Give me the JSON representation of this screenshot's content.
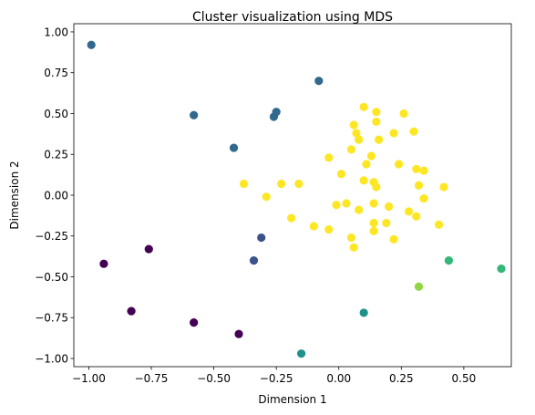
{
  "chart_data": {
    "type": "scatter",
    "title": "Cluster visualization using MDS",
    "xlabel": "Dimension 1",
    "ylabel": "Dimension 2",
    "xlim": [
      -1.06,
      0.69
    ],
    "ylim": [
      -1.05,
      1.05
    ],
    "xticks": [
      -1.0,
      -0.75,
      -0.5,
      -0.25,
      0.0,
      0.25,
      0.5
    ],
    "xtick_labels": [
      "−1.00",
      "−0.75",
      "−0.50",
      "−0.25",
      "0.00",
      "0.25",
      "0.50"
    ],
    "yticks": [
      1.0,
      0.75,
      0.5,
      0.25,
      0.0,
      -0.25,
      -0.5,
      -0.75,
      -1.0
    ],
    "ytick_labels": [
      "1.00",
      "0.75",
      "0.50",
      "0.25",
      "0.00",
      "−0.25",
      "−0.50",
      "−0.75",
      "−1.00"
    ],
    "grid": false,
    "legend": "none",
    "series": [
      {
        "color": "#440154",
        "x": [
          -0.94,
          -0.76,
          -0.83,
          -0.58,
          -0.4
        ],
        "y": [
          -0.42,
          -0.33,
          -0.71,
          -0.78,
          -0.85
        ]
      },
      {
        "color": "#3b528b",
        "x": [
          -0.31,
          -0.34
        ],
        "y": [
          -0.26,
          -0.4
        ]
      },
      {
        "color": "#31688e",
        "x": [
          -0.99,
          -0.58,
          -0.42,
          -0.26,
          -0.25,
          -0.08
        ],
        "y": [
          0.92,
          0.49,
          0.29,
          0.48,
          0.51,
          0.7
        ]
      },
      {
        "color": "#21918c",
        "x": [
          0.1,
          -0.15
        ],
        "y": [
          -0.72,
          -0.97
        ]
      },
      {
        "color": "#35b779",
        "x": [
          0.44,
          0.65
        ],
        "y": [
          -0.4,
          -0.45
        ]
      },
      {
        "color": "#8fd744",
        "x": [
          0.32
        ],
        "y": [
          -0.56
        ]
      },
      {
        "color": "#fde725",
        "x": [
          0.1,
          0.15,
          0.26,
          0.06,
          0.15,
          0.07,
          0.3,
          0.08,
          0.16,
          0.22,
          0.05,
          0.13,
          -0.04,
          0.11,
          0.24,
          0.31,
          0.34,
          0.15,
          -0.38,
          -0.23,
          -0.16,
          0.01,
          0.1,
          0.14,
          0.32,
          0.42,
          -0.29,
          0.34,
          -0.01,
          0.03,
          0.08,
          0.14,
          0.2,
          0.28,
          0.31,
          -0.19,
          -0.1,
          0.14,
          0.19,
          0.4,
          -0.04,
          0.14,
          0.05,
          0.22,
          0.06
        ],
        "y": [
          0.54,
          0.51,
          0.5,
          0.43,
          0.45,
          0.38,
          0.39,
          0.34,
          0.34,
          0.38,
          0.28,
          0.24,
          0.23,
          0.19,
          0.19,
          0.16,
          0.15,
          0.05,
          0.07,
          0.07,
          0.07,
          0.13,
          0.09,
          0.08,
          0.06,
          0.05,
          -0.01,
          -0.02,
          -0.06,
          -0.05,
          -0.09,
          -0.05,
          -0.07,
          -0.1,
          -0.13,
          -0.14,
          -0.19,
          -0.17,
          -0.17,
          -0.18,
          -0.21,
          -0.22,
          -0.26,
          -0.27,
          -0.32
        ]
      }
    ]
  }
}
